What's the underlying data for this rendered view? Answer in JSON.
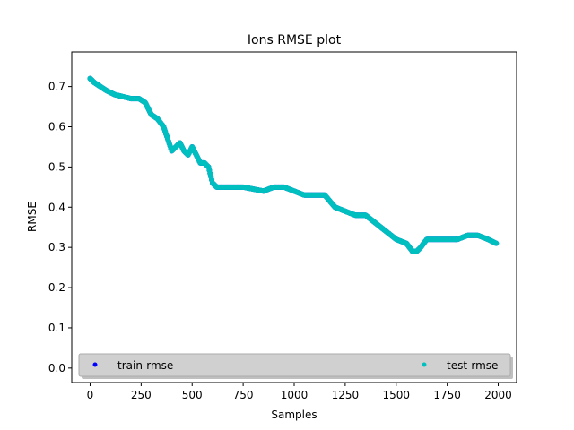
{
  "chart_data": {
    "type": "scatter",
    "title": "Ions RMSE plot",
    "xlabel": "Samples",
    "ylabel": "RMSE",
    "xlim": [
      -90,
      2090
    ],
    "ylim": [
      -0.036,
      0.786
    ],
    "xticks": [
      0,
      250,
      500,
      750,
      1000,
      1250,
      1500,
      1750,
      2000
    ],
    "yticks": [
      0.0,
      0.1,
      0.2,
      0.3,
      0.4,
      0.5,
      0.6,
      0.7
    ],
    "xtick_labels": [
      "0",
      "250",
      "500",
      "750",
      "1000",
      "1250",
      "1500",
      "1750",
      "2000"
    ],
    "ytick_labels": [
      "0.0",
      "0.1",
      "0.2",
      "0.3",
      "0.4",
      "0.5",
      "0.6",
      "0.7"
    ],
    "grid": false,
    "legend": {
      "placement": "lower-center",
      "entries": [
        {
          "label": "train-rmse",
          "color": "#0000ff"
        },
        {
          "label": "test-rmse",
          "color": "#00bfbf"
        }
      ]
    },
    "series": [
      {
        "name": "train-rmse",
        "color": "#0000ff",
        "x": [
          0,
          20,
          50,
          80,
          120,
          160,
          200,
          240,
          270,
          300,
          330,
          360,
          380,
          400,
          420,
          440,
          460,
          480,
          500,
          520,
          540,
          560,
          580,
          600,
          620,
          640,
          660,
          700,
          750,
          800,
          850,
          900,
          950,
          1000,
          1050,
          1100,
          1150,
          1200,
          1250,
          1300,
          1350,
          1400,
          1450,
          1500,
          1550,
          1580,
          1600,
          1620,
          1650,
          1700,
          1750,
          1800,
          1850,
          1880,
          1900,
          1950,
          1990
        ],
        "y": [
          0.72,
          0.71,
          0.7,
          0.69,
          0.68,
          0.675,
          0.67,
          0.67,
          0.66,
          0.63,
          0.62,
          0.6,
          0.57,
          0.54,
          0.55,
          0.56,
          0.54,
          0.53,
          0.55,
          0.53,
          0.51,
          0.51,
          0.5,
          0.46,
          0.45,
          0.45,
          0.45,
          0.45,
          0.45,
          0.445,
          0.44,
          0.45,
          0.45,
          0.44,
          0.43,
          0.43,
          0.43,
          0.4,
          0.39,
          0.38,
          0.38,
          0.36,
          0.34,
          0.32,
          0.31,
          0.29,
          0.29,
          0.3,
          0.32,
          0.32,
          0.32,
          0.32,
          0.33,
          0.33,
          0.33,
          0.32,
          0.31
        ]
      },
      {
        "name": "test-rmse",
        "color": "#00bfbf",
        "x": [
          0,
          20,
          50,
          80,
          120,
          160,
          200,
          240,
          270,
          300,
          330,
          360,
          380,
          400,
          420,
          440,
          460,
          480,
          500,
          520,
          540,
          560,
          580,
          600,
          620,
          640,
          660,
          700,
          750,
          800,
          850,
          900,
          950,
          1000,
          1050,
          1100,
          1150,
          1200,
          1250,
          1300,
          1350,
          1400,
          1450,
          1500,
          1550,
          1580,
          1600,
          1620,
          1650,
          1700,
          1750,
          1800,
          1850,
          1880,
          1900,
          1950,
          1990
        ],
        "y": [
          0.72,
          0.71,
          0.7,
          0.69,
          0.68,
          0.675,
          0.67,
          0.67,
          0.66,
          0.63,
          0.62,
          0.6,
          0.57,
          0.54,
          0.55,
          0.56,
          0.54,
          0.53,
          0.55,
          0.53,
          0.51,
          0.51,
          0.5,
          0.46,
          0.45,
          0.45,
          0.45,
          0.45,
          0.45,
          0.445,
          0.44,
          0.45,
          0.45,
          0.44,
          0.43,
          0.43,
          0.43,
          0.4,
          0.39,
          0.38,
          0.38,
          0.36,
          0.34,
          0.32,
          0.31,
          0.29,
          0.29,
          0.3,
          0.32,
          0.32,
          0.32,
          0.32,
          0.33,
          0.33,
          0.33,
          0.32,
          0.31
        ]
      }
    ]
  }
}
